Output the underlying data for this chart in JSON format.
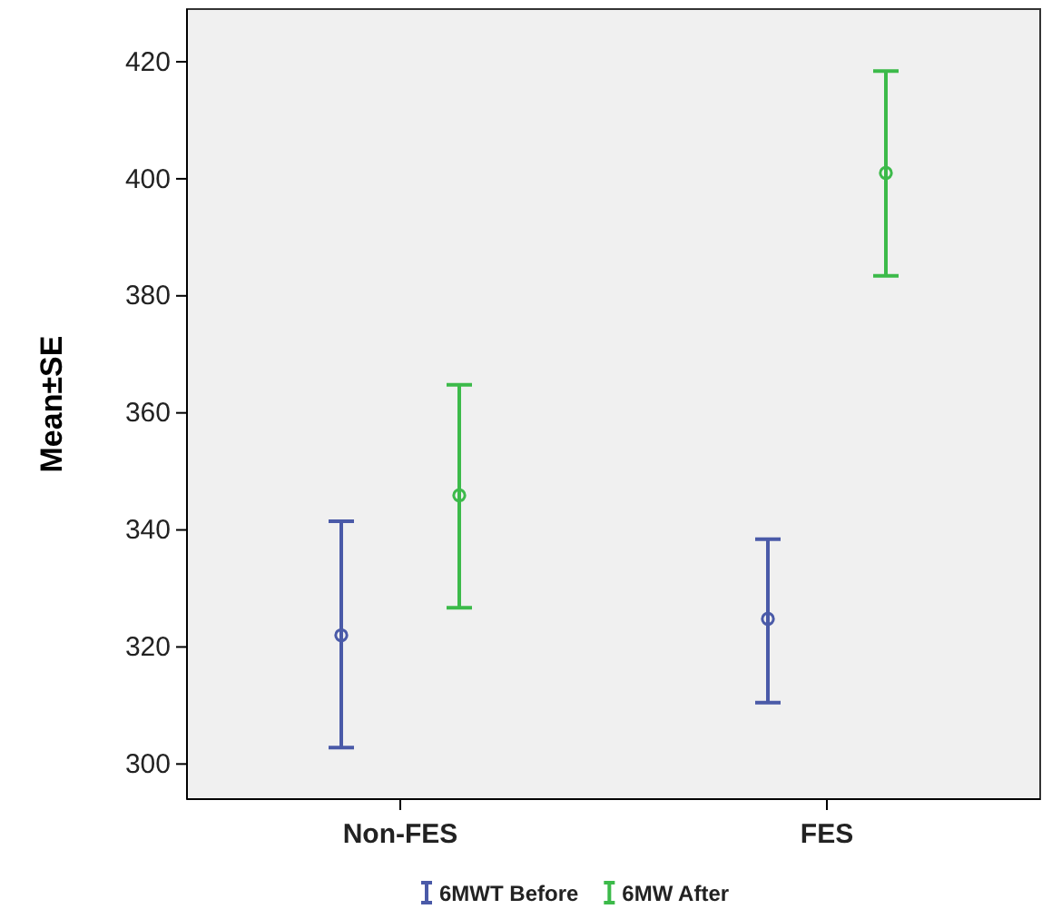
{
  "chart_data": {
    "type": "scatter",
    "ylabel": "Mean±SE",
    "categories": [
      "Non-FES",
      "FES"
    ],
    "series": [
      {
        "name": "6MWT Before",
        "color": "#4a5aa8",
        "values": [
          322,
          324.8
        ],
        "errors": [
          [
            302.8,
            341.5
          ],
          [
            310.5,
            338.4
          ]
        ]
      },
      {
        "name": "6MW After",
        "color": "#3cba4a",
        "values": [
          345.9,
          401
        ],
        "errors": [
          [
            326.7,
            364.8
          ],
          [
            383.4,
            418.4
          ]
        ]
      }
    ],
    "ylim": [
      294,
      429
    ],
    "yticks": [
      300,
      320,
      340,
      360,
      380,
      400,
      420
    ],
    "grid": false,
    "legend": "bottom",
    "marker": "circle"
  }
}
